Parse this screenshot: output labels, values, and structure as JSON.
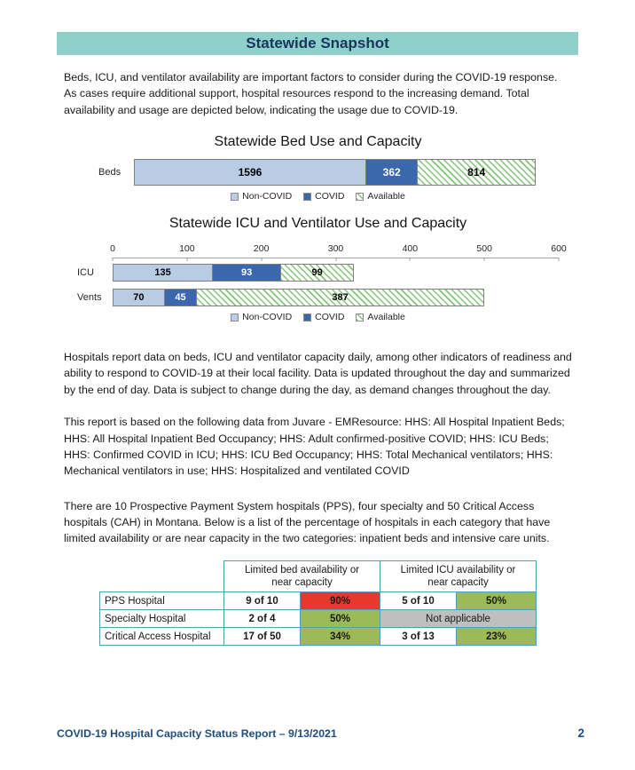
{
  "header": {
    "title": "Statewide Snapshot"
  },
  "intro": "Beds, ICU, and ventilator availability are important factors to consider during the COVID-19 response. As cases require additional support, hospital resources respond to the increasing demand. Total availability and usage are depicted below, indicating the usage due to COVID-19.",
  "chart_data": [
    {
      "type": "bar",
      "orientation": "horizontal",
      "title": "Statewide Bed Use and Capacity",
      "categories": [
        "Beds"
      ],
      "series": [
        {
          "name": "Non-COVID",
          "values": [
            1596
          ],
          "color": "#b8cce4",
          "label_color": "#000000",
          "hatch": false
        },
        {
          "name": "COVID",
          "values": [
            362
          ],
          "color": "#3a67ad",
          "label_color": "#ffffff",
          "hatch": false
        },
        {
          "name": "Available",
          "values": [
            814
          ],
          "color": "#ffffff",
          "label_color": "#000000",
          "hatch": true
        }
      ],
      "axis_max": null,
      "legend_position": "bottom",
      "grid": false
    },
    {
      "type": "bar",
      "orientation": "horizontal",
      "title": "Statewide ICU and Ventilator Use and Capacity",
      "categories": [
        "ICU",
        "Vents"
      ],
      "x_ticks": [
        0,
        100,
        200,
        300,
        400,
        500,
        600
      ],
      "xlim": [
        0,
        600
      ],
      "series": [
        {
          "name": "Non-COVID",
          "values": [
            135,
            70
          ],
          "color": "#b8cce4",
          "label_color": "#000000",
          "hatch": false
        },
        {
          "name": "COVID",
          "values": [
            93,
            45
          ],
          "color": "#3a67ad",
          "label_color": "#ffffff",
          "hatch": false
        },
        {
          "name": "Available",
          "values": [
            99,
            387
          ],
          "color": "#ffffff",
          "label_color": "#000000",
          "hatch": true
        }
      ],
      "axis_max": 600,
      "legend_position": "bottom",
      "grid": false
    }
  ],
  "paragraphs": {
    "reporting": "Hospitals report data on beds, ICU and ventilator capacity daily, among other indicators of readiness and ability to respond to COVID-19 at their local facility. Data is updated throughout the day and summarized by the end of day. Data is subject to change during the day, as demand changes throughout the day.",
    "sources": "This report is based on the following data from Juvare - EMResource: HHS: All Hospital Inpatient Beds; HHS: All Hospital Inpatient Bed Occupancy; HHS: Adult confirmed-positive COVID; HHS: ICU Beds; HHS: Confirmed COVID in ICU; HHS: ICU Bed Occupancy; HHS: Total Mechanical ventilators; HHS: Mechanical ventilators in use; HHS: Hospitalized and ventilated COVID",
    "hospitals": "There are 10 Prospective Payment System hospitals (PPS), four specialty and 50 Critical Access hospitals (CAH) in Montana. Below is a list of the percentage of hospitals in each category that have limited availability or are near capacity in the two categories: inpatient beds and intensive care units."
  },
  "table": {
    "col_groups": [
      "Limited bed availability or near capacity",
      "Limited ICU availability or near capacity"
    ],
    "rows": [
      {
        "label": "PPS Hospital",
        "bed_count": "9 of 10",
        "bed_pct": "90%",
        "icu_count": "5 of 10",
        "icu_pct": "50%"
      },
      {
        "label": "Specialty Hospital",
        "bed_count": "2 of 4",
        "bed_pct": "50%",
        "icu_note": "Not applicable"
      },
      {
        "label": "Critical Access Hospital",
        "bed_count": "17 of 50",
        "bed_pct": "34%",
        "icu_count": "3 of 13",
        "icu_pct": "23%"
      }
    ],
    "colors": {
      "red": "#e8382d",
      "green": "#9bbb59",
      "gray": "#bfbfbf"
    }
  },
  "footer": {
    "title": "COVID-19 Hospital Capacity Status Report – 9/13/2021",
    "page_number": "2"
  }
}
